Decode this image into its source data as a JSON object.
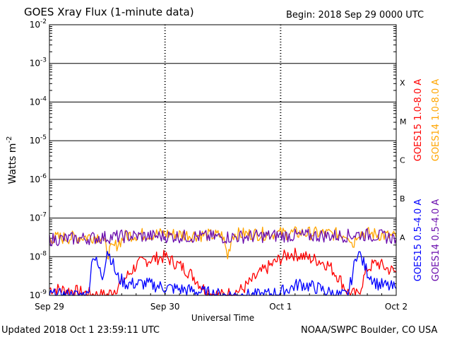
{
  "header": {
    "title": "GOES Xray Flux (1-minute data)",
    "begin": "Begin:  2018 Sep 29 0000 UTC"
  },
  "footer": {
    "updated": "Updated 2018 Oct  1 23:59:11 UTC",
    "credit": "NOAA/SWPC Boulder, CO USA"
  },
  "chart_data": {
    "type": "line",
    "title": "GOES Xray Flux (1-minute data)",
    "xlabel": "Universal Time",
    "ylabel": "Watts m",
    "ylabel_superscript": "-2",
    "y_scale": "log",
    "ylim": [
      1e-09,
      0.01
    ],
    "xlim_days": [
      "Sep 29",
      "Oct 2"
    ],
    "y_ticks": [
      {
        "base": "10",
        "exp": "-9"
      },
      {
        "base": "10",
        "exp": "-8"
      },
      {
        "base": "10",
        "exp": "-7"
      },
      {
        "base": "10",
        "exp": "-6"
      },
      {
        "base": "10",
        "exp": "-5"
      },
      {
        "base": "10",
        "exp": "-4"
      },
      {
        "base": "10",
        "exp": "-3"
      },
      {
        "base": "10",
        "exp": "-2"
      }
    ],
    "x_ticks": [
      "Sep 29",
      "Sep 30",
      "Oct 1",
      "Oct 2"
    ],
    "flare_classes": [
      {
        "label": "A",
        "value": 1e-08
      },
      {
        "label": "B",
        "value": 1e-07
      },
      {
        "label": "C",
        "value": 1e-06
      },
      {
        "label": "M",
        "value": 1e-05
      },
      {
        "label": "X",
        "value": 0.0001
      }
    ],
    "series": [
      {
        "name": "GOES15 1.0-8.0 A",
        "color": "#ff0000",
        "x_hours": [
          0,
          5,
          8,
          10,
          12,
          14,
          16,
          18,
          20,
          22,
          24,
          26,
          28,
          30,
          32,
          34,
          36,
          40,
          44,
          48,
          50,
          52,
          54,
          56,
          58,
          60,
          62,
          64,
          66,
          68,
          70,
          72
        ],
        "y": [
          1.5e-09,
          1.3e-09,
          1.1e-09,
          1e-09,
          1e-09,
          1.6e-09,
          3e-09,
          6e-09,
          8e-09,
          9e-09,
          1e-08,
          7e-09,
          5e-09,
          3e-09,
          1.5e-09,
          1.1e-09,
          1e-09,
          1.4e-09,
          4e-09,
          9e-09,
          1.2e-08,
          1.1e-08,
          9e-09,
          8e-09,
          6e-09,
          3e-09,
          1.2e-09,
          1e-09,
          5e-09,
          7e-09,
          5e-09,
          4e-09
        ]
      },
      {
        "name": "GOES14 1.0-8.0 A",
        "color": "#ffa500",
        "x_hours": [
          0,
          4,
          8,
          11,
          12,
          16,
          20,
          24,
          28,
          32,
          36,
          37,
          38,
          44,
          48,
          52,
          56,
          60,
          62,
          63,
          64,
          68,
          72
        ],
        "y": [
          3e-08,
          3.1e-08,
          3.3e-08,
          3.4e-08,
          1.2e-08,
          3.6e-08,
          3.8e-08,
          3.9e-08,
          3.7e-08,
          3.6e-08,
          3.5e-08,
          1e-08,
          3.8e-08,
          3.9e-08,
          4e-08,
          4.1e-08,
          4e-08,
          3.8e-08,
          3.9e-08,
          2e-08,
          4.2e-08,
          3.8e-08,
          3.2e-08
        ]
      },
      {
        "name": "GOES15 0.5-4.0 A",
        "color": "#0000ff",
        "x_hours": [
          0,
          4,
          6,
          8,
          9,
          11,
          12,
          13,
          14,
          16,
          20,
          24,
          28,
          32,
          36,
          40,
          44,
          48,
          52,
          56,
          58,
          60,
          62,
          64,
          66,
          68,
          72
        ],
        "y": [
          1e-09,
          1e-09,
          1e-09,
          1e-09,
          1.2e-08,
          3e-09,
          1.5e-08,
          8e-09,
          3e-09,
          2e-09,
          2e-09,
          1.6e-09,
          1.4e-09,
          1.2e-09,
          1e-09,
          1e-09,
          1e-09,
          1.2e-09,
          2e-09,
          1.5e-09,
          1.2e-09,
          1e-09,
          1e-09,
          1.5e-08,
          4e-09,
          2e-09,
          1.5e-09
        ]
      },
      {
        "name": "GOES14 0.5-4.0 A",
        "color": "#6a0dad",
        "x_hours": [
          0,
          4,
          8,
          12,
          16,
          24,
          32,
          36,
          44,
          48,
          56,
          62,
          64,
          68,
          72
        ],
        "y": [
          2.8e-08,
          2.9e-08,
          3e-08,
          3.2e-08,
          3.4e-08,
          3.4e-08,
          3.3e-08,
          3.2e-08,
          3.4e-08,
          3.5e-08,
          3.5e-08,
          3.5e-08,
          3.8e-08,
          3.5e-08,
          3e-08
        ]
      }
    ]
  }
}
